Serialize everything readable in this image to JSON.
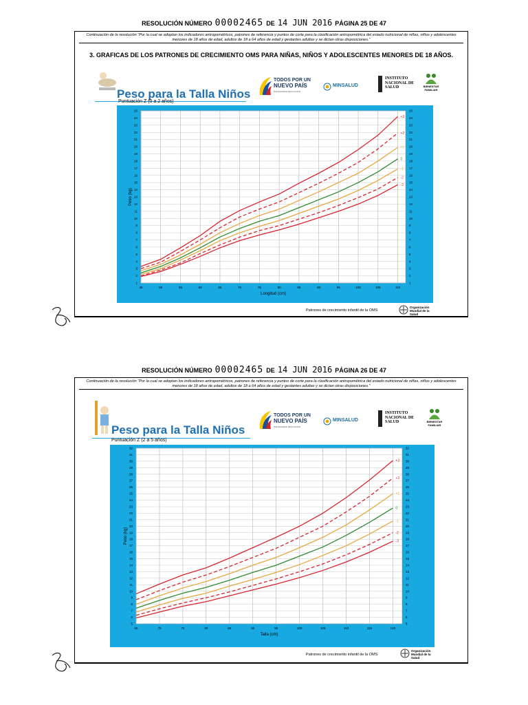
{
  "pages": [
    {
      "header": {
        "label": "RESOLUCIÓN NÚMERO",
        "number": "00002465",
        "de": "DE",
        "date": "14 JUN 2016",
        "page": "PÁGINA 25 DE 47"
      },
      "continuation": "Continuación de la resolución \"Por la cual se adoptan los indicadores antropométricos, patrones de referencia y puntos de corte para la clasificación antropométrica del estado nutricional de niñas, niños y adolescentes menores de 18 años de edad, adultos de 18 a 64 años de edad y gestantes adultas y se dictan otras disposiciones.\"",
      "section": "3.  GRAFICAS DE LOS PATRONES DE CRECIMIENTO OMS PARA NIÑAS, NIÑOS Y ADOLESCENTES MENORES DE 18 AÑOS.",
      "logos": {
        "todos": "TODOS POR UN",
        "nuevo": "NUEVO PAÍS",
        "lema": "PAZ  EQUIDAD  EDUCACIÓN",
        "minsalud": "MINSALUD",
        "ins": "INSTITUTO NACIONAL DE SALUD",
        "icbf": "BIENESTAR FAMILIAR"
      },
      "footer": "Patrones de crecimiento infantil de la OMS",
      "oms": "Organización Mundial de la Salud"
    },
    {
      "header": {
        "label": "RESOLUCIÓN NÚMERO",
        "number": "00002465",
        "de": "DE",
        "date": "14 JUN 2016",
        "page": "PÁGINA 26 DE 47"
      },
      "continuation": "Continuación de la resolución \"Por la cual se adoptan los indicadores antropométricos, patrones de referencia y puntos de corte para la clasificación antropométrica del estado nutricional de niñas, niños y adolescentes menores de 18 años de edad, adultos de 18 a 64 años de edad y gestantes adultas y se dictan otras disposiciones.\"",
      "logos": {
        "todos": "TODOS POR UN",
        "nuevo": "NUEVO PAÍS",
        "lema": "PAZ  EQUIDAD  EDUCACIÓN",
        "minsalud": "MINSALUD",
        "ins": "INSTITUTO NACIONAL DE SALUD",
        "icbf": "BIENESTAR FAMILIAR"
      },
      "footer": "Patrones de crecimiento infantil de la OMS",
      "oms": "Organización Mundial de la Salud"
    }
  ],
  "chart_data": [
    {
      "type": "line",
      "title": "Peso para la Talla Niños",
      "subtitle": "Puntuación Z (0 a 2 años)",
      "x_label": "Longitud (cm)",
      "y_label": "Peso (kg)",
      "background": "#19a9e1",
      "grid": true,
      "x": [
        45,
        50,
        55,
        60,
        65,
        70,
        75,
        80,
        85,
        90,
        95,
        100,
        105,
        110
      ],
      "xlim": [
        45,
        112
      ],
      "xticks": [
        45,
        50,
        55,
        60,
        65,
        70,
        75,
        80,
        85,
        90,
        95,
        100,
        105,
        110
      ],
      "ylim": [
        1,
        25
      ],
      "yticks": [
        1,
        2,
        3,
        4,
        5,
        6,
        7,
        8,
        9,
        10,
        11,
        12,
        13,
        14,
        15,
        16,
        17,
        18,
        19,
        20,
        21,
        22,
        23,
        24,
        25
      ],
      "series": [
        {
          "name": "+3",
          "color": "#d9232d",
          "dashed": false,
          "values": [
            3.3,
            4.3,
            5.9,
            7.6,
            9.6,
            11.1,
            12.3,
            13.4,
            14.9,
            16.3,
            17.8,
            19.6,
            21.6,
            24.2
          ]
        },
        {
          "name": "+2",
          "color": "#d9232d",
          "dashed": true,
          "values": [
            3.0,
            3.9,
            5.4,
            7.0,
            8.7,
            10.2,
            11.3,
            12.3,
            13.6,
            14.9,
            16.3,
            17.8,
            19.7,
            21.9
          ]
        },
        {
          "name": "+1",
          "color": "#e8a740",
          "dashed": false,
          "values": [
            2.7,
            3.6,
            4.9,
            6.4,
            8.0,
            9.3,
            10.4,
            11.3,
            12.5,
            13.7,
            15.0,
            16.3,
            18.0,
            19.9
          ]
        },
        {
          "name": "0",
          "color": "#2e8b2e",
          "dashed": false,
          "values": [
            2.4,
            3.3,
            4.5,
            5.9,
            7.4,
            8.6,
            9.6,
            10.4,
            11.5,
            12.6,
            13.7,
            15.0,
            16.5,
            18.3
          ]
        },
        {
          "name": "-1",
          "color": "#e8a740",
          "dashed": false,
          "values": [
            2.2,
            3.0,
            4.2,
            5.5,
            6.9,
            8.0,
            8.9,
            9.7,
            10.7,
            11.7,
            12.7,
            13.9,
            15.3,
            16.9
          ]
        },
        {
          "name": "-2",
          "color": "#d9232d",
          "dashed": true,
          "values": [
            2.0,
            2.8,
            3.8,
            5.1,
            6.3,
            7.4,
            8.3,
            9.0,
            9.9,
            10.8,
            11.8,
            12.9,
            14.1,
            15.7
          ]
        },
        {
          "name": "-3",
          "color": "#d9232d",
          "dashed": false,
          "values": [
            1.9,
            2.6,
            3.6,
            4.7,
            5.9,
            6.9,
            7.7,
            8.4,
            9.2,
            10.1,
            11.0,
            12.0,
            13.2,
            14.7
          ]
        }
      ]
    },
    {
      "type": "line",
      "title": "Peso para la Talla Niños",
      "subtitle": "Puntuación Z (2 a 5 años)",
      "x_label": "Talla (cm)",
      "y_label": "Peso (kg)",
      "background": "#19a9e1",
      "grid": true,
      "x": [
        65,
        70,
        75,
        80,
        85,
        90,
        95,
        100,
        105,
        110,
        115,
        120
      ],
      "xlim": [
        65,
        122
      ],
      "xticks": [
        65,
        70,
        75,
        80,
        85,
        90,
        95,
        100,
        105,
        110,
        115,
        120
      ],
      "ylim": [
        5,
        32
      ],
      "yticks": [
        5,
        6,
        7,
        8,
        9,
        10,
        11,
        12,
        13,
        14,
        15,
        16,
        17,
        18,
        19,
        20,
        21,
        22,
        23,
        24,
        25,
        26,
        27,
        28,
        29,
        30,
        31,
        32
      ],
      "series": [
        {
          "name": "+3",
          "color": "#d9232d",
          "dashed": false,
          "values": [
            9.6,
            11.1,
            12.5,
            13.6,
            15.1,
            16.7,
            18.3,
            20.0,
            22.0,
            24.4,
            27.1,
            30.1
          ]
        },
        {
          "name": "+2",
          "color": "#d9232d",
          "dashed": true,
          "values": [
            8.7,
            10.1,
            11.4,
            12.5,
            13.8,
            15.2,
            16.6,
            18.3,
            20.0,
            22.2,
            24.6,
            27.4
          ]
        },
        {
          "name": "+1",
          "color": "#e8a740",
          "dashed": false,
          "values": [
            8.0,
            9.3,
            10.5,
            11.5,
            12.7,
            14.0,
            15.2,
            16.7,
            18.3,
            20.2,
            22.5,
            25.0
          ]
        },
        {
          "name": "0",
          "color": "#2e8b2e",
          "dashed": false,
          "values": [
            7.4,
            8.6,
            9.7,
            10.6,
            11.7,
            12.9,
            14.0,
            15.4,
            16.8,
            18.6,
            20.6,
            22.8
          ]
        },
        {
          "name": "-1",
          "color": "#e8a740",
          "dashed": false,
          "values": [
            6.8,
            7.9,
            8.9,
            9.7,
            10.8,
            11.8,
            12.9,
            14.1,
            15.5,
            17.0,
            18.8,
            20.8
          ]
        },
        {
          "name": "-2",
          "color": "#d9232d",
          "dashed": true,
          "values": [
            6.3,
            7.3,
            8.2,
            9.0,
            9.9,
            10.9,
            11.9,
            13.0,
            14.2,
            15.6,
            17.2,
            19.0
          ]
        },
        {
          "name": "-3",
          "color": "#d9232d",
          "dashed": false,
          "values": [
            5.9,
            6.8,
            7.7,
            8.4,
            9.3,
            10.2,
            11.1,
            12.1,
            13.2,
            14.5,
            16.0,
            17.7
          ]
        }
      ]
    }
  ]
}
